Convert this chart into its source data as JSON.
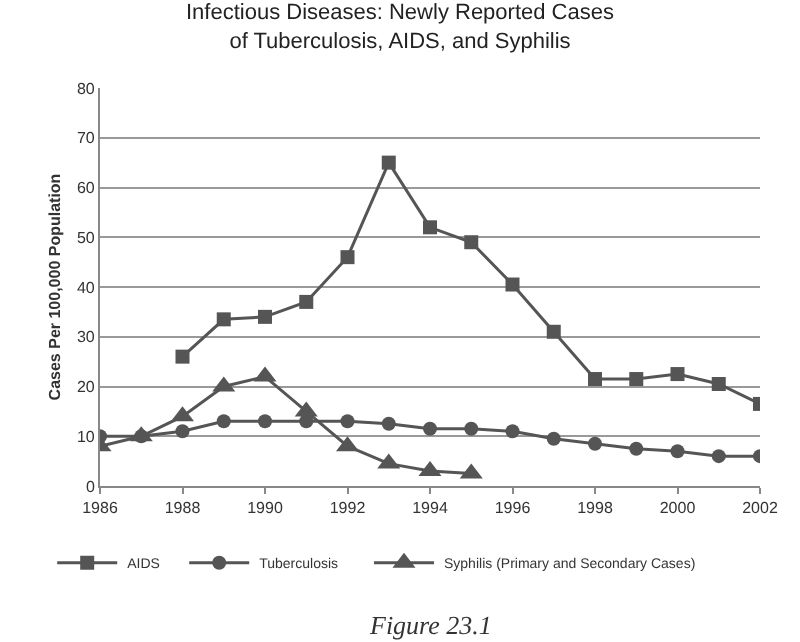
{
  "chart_data": {
    "type": "line",
    "title": "Infectious Diseases: Newly Reported Cases\nof Tuberculosis, AIDS, and Syphilis",
    "ylabel": "Cases Per 100,000 Population",
    "annotations": [
      "Figure 23.1"
    ],
    "x": [
      1986,
      1987,
      1988,
      1989,
      1990,
      1991,
      1992,
      1993,
      1994,
      1995,
      1996,
      1997,
      1998,
      1999,
      2000,
      2001,
      2002
    ],
    "series": [
      {
        "name": "AIDS",
        "color": "#555555",
        "marker": "square",
        "values": [
          null,
          null,
          26,
          33.5,
          34,
          37,
          46,
          65,
          52,
          49,
          40.5,
          31,
          21.5,
          21.5,
          22.5,
          20.5,
          16.5
        ]
      },
      {
        "name": "Tuberculosis",
        "color": "#555555",
        "marker": "circle",
        "values": [
          10,
          10,
          11,
          13,
          13,
          13,
          13,
          12.5,
          11.5,
          11.5,
          11,
          9.5,
          8.5,
          7.5,
          7,
          6,
          6
        ]
      },
      {
        "name": "Syphilis (Primary and Secondary Cases)",
        "color": "#555555",
        "marker": "triangle",
        "values": [
          8,
          10,
          14,
          20,
          22,
          15,
          8,
          4.5,
          3,
          2.5,
          null,
          null,
          null,
          null,
          null,
          null,
          null
        ]
      }
    ],
    "xlim": [
      1986,
      2002
    ],
    "xticks": [
      1986,
      1988,
      1990,
      1992,
      1994,
      1996,
      1998,
      2000,
      2002
    ],
    "ylim": [
      0,
      80
    ],
    "yticks": [
      0,
      10,
      20,
      30,
      40,
      50,
      60,
      70,
      80
    ],
    "grid": "y",
    "legend": "bottom",
    "line_style": "solid"
  }
}
